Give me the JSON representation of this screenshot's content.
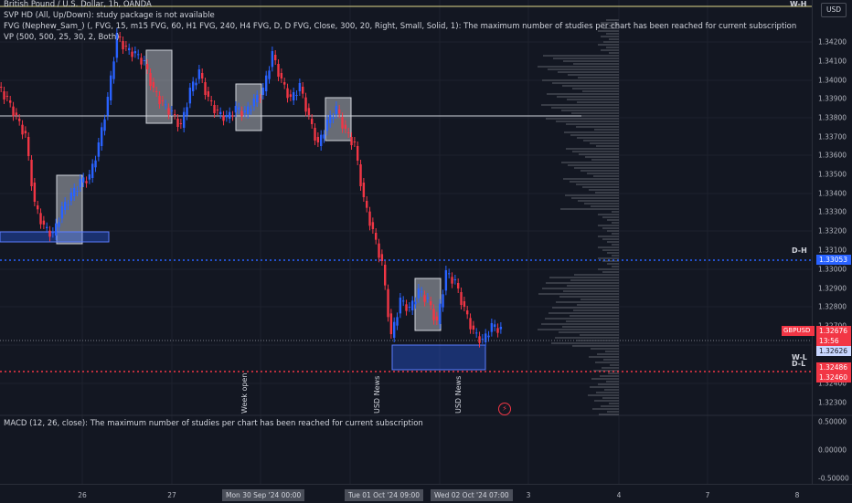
{
  "symbol_line": "British Pound / U.S. Dollar, 1h, OANDA",
  "indicators": [
    "SVP HD (All, Up/Down): study package is not available",
    "FVG (Nephew_Sam_) (, FVG, 15, m15 FVG, 60, H1 FVG, 240, H4 FVG, D, D FVG, Close, 300, 20, Right, Small, Solid, 1): The maximum number of studies per chart has been reached for current subscription",
    "VP (500, 500, 25, 30, 2, Both)"
  ],
  "macd_line": "MACD (12, 26, close): The maximum number of studies per chart has been reached for current subscription",
  "currency_button": "USD",
  "price_ticks": [
    "1.34200",
    "1.34100",
    "1.34000",
    "1.33900",
    "1.33800",
    "1.33700",
    "1.33600",
    "1.33500",
    "1.33400",
    "1.33300",
    "1.33200",
    "1.33100",
    "1.33000",
    "1.32900",
    "1.32800",
    "1.32700",
    "1.32400",
    "1.32300"
  ],
  "macd_ticks": [
    "0.50000",
    "0.00000",
    "-0.50000"
  ],
  "price_labels": {
    "dh_price": "1.33053",
    "symbol": "GBPUSD",
    "last_price": "1.32676",
    "countdown": "13:56",
    "cross_price": "1.32626",
    "bid": "1.32486",
    "ask": "1.32460"
  },
  "level_tags": {
    "wh": "W-H",
    "dh": "D-H",
    "wl": "W-L",
    "dl": "D-L"
  },
  "vertical_labels": {
    "week_open": "Week open",
    "usd_news_1": "USD News",
    "usd_news_2": "USD News"
  },
  "time_ticks": [
    "26",
    "27",
    "3",
    "4",
    "7",
    "8"
  ],
  "time_boxes": [
    "Mon 30 Sep '24   00:00",
    "Tue 01 Oct '24   09:00",
    "Wed 02 Oct '24   07:00"
  ],
  "colors": {
    "bull": "#2962ff",
    "bear": "#f23645",
    "bg": "#131722",
    "dh_line": "#2962ff",
    "bid_line": "#f23645"
  }
}
